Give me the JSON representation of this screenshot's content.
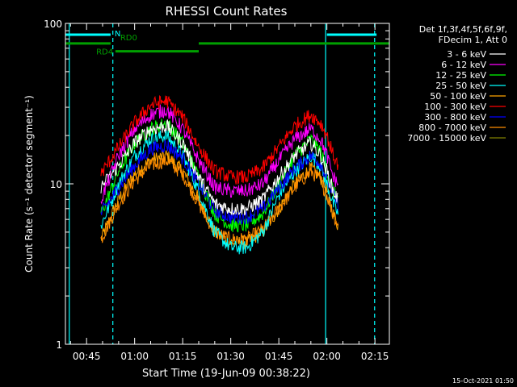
{
  "chart_data": {
    "type": "line",
    "title": "RHESSI Count Rates",
    "xlabel": "Start Time (19-Jun-09 00:38:22)",
    "ylabel": "Count Rate (s⁻¹ detector segment⁻¹)",
    "yscale": "log",
    "ylim": [
      1,
      100
    ],
    "xlim_minutes": [
      38.4,
      139.5
    ],
    "x_ticks": [
      {
        "label": "00:45",
        "minute": 45
      },
      {
        "label": "01:00",
        "minute": 60
      },
      {
        "label": "01:15",
        "minute": 75
      },
      {
        "label": "01:30",
        "minute": 90
      },
      {
        "label": "01:45",
        "minute": 105
      },
      {
        "label": "02:00",
        "minute": 120
      },
      {
        "label": "02:15",
        "minute": 135
      }
    ],
    "y_ticks": [
      {
        "label": "1",
        "value": 1
      },
      {
        "label": "10",
        "value": 10
      },
      {
        "label": "100",
        "value": 100
      }
    ],
    "legend_header": [
      "Det 1f,3f,4f,5f,6f,9f,",
      "FDecim 1, Att 0"
    ],
    "legend_position": "right, outside plot",
    "series": [
      {
        "name": "3 - 6 keV",
        "color": "#ffffff",
        "x": [
          49.5,
          55,
          60,
          65,
          70,
          75,
          80,
          85,
          90,
          95,
          100,
          105,
          110,
          115,
          118,
          120,
          122,
          123.5
        ],
        "y": [
          9.5,
          13,
          18,
          22,
          23,
          18,
          11,
          7.5,
          7,
          7,
          8,
          11,
          15,
          18,
          15,
          12,
          9,
          8
        ]
      },
      {
        "name": "6 - 12 keV",
        "color": "#ff00ff",
        "x": [
          49.5,
          55,
          60,
          65,
          70,
          75,
          80,
          85,
          90,
          95,
          100,
          105,
          110,
          115,
          118,
          120,
          122,
          123.5
        ],
        "y": [
          8,
          15,
          22,
          27,
          29,
          22,
          14,
          9.5,
          9,
          9,
          10,
          14,
          19,
          22,
          19,
          15,
          11,
          10
        ]
      },
      {
        "name": "12 - 25 keV",
        "color": "#00ff00",
        "x": [
          49.5,
          55,
          60,
          65,
          70,
          75,
          80,
          85,
          90,
          95,
          100,
          105,
          110,
          115,
          118,
          120,
          122,
          123.5
        ],
        "y": [
          6.5,
          12,
          18,
          22,
          24,
          18,
          11,
          6.5,
          5.5,
          5.5,
          6.5,
          10,
          15,
          19,
          16,
          12,
          9,
          8
        ]
      },
      {
        "name": "25 - 50 keV",
        "color": "#00ffff",
        "x": [
          49.5,
          55,
          60,
          65,
          70,
          75,
          80,
          85,
          90,
          95,
          100,
          105,
          110,
          115,
          118,
          120,
          122,
          123.5
        ],
        "y": [
          5.5,
          10,
          15,
          19,
          20,
          15,
          9,
          5,
          4,
          4,
          5,
          8.5,
          12,
          15,
          13,
          10,
          7.5,
          6.5
        ]
      },
      {
        "name": "50 - 100 keV",
        "color": "#ffa500",
        "x": [
          49.5,
          55,
          60,
          65,
          70,
          75,
          80,
          85,
          90,
          95,
          100,
          105,
          110,
          115,
          118,
          120,
          122,
          123.5
        ],
        "y": [
          4.5,
          8,
          11.5,
          14,
          15,
          12,
          8,
          5,
          4.3,
          4.3,
          5,
          7,
          10,
          12.5,
          11,
          9,
          6.5,
          5.5
        ]
      },
      {
        "name": "100 - 300 keV",
        "color": "#ff0000",
        "x": [
          49.5,
          55,
          60,
          65,
          70,
          75,
          80,
          85,
          90,
          95,
          100,
          105,
          110,
          115,
          118,
          120,
          122,
          123.5
        ],
        "y": [
          11.5,
          17,
          24,
          31,
          33,
          26,
          17,
          12,
          11,
          11,
          12.5,
          17,
          23,
          27,
          24,
          20,
          15,
          13
        ]
      },
      {
        "name": "300 - 800 keV",
        "color": "#0000ff",
        "x": [
          49.5,
          55,
          60,
          65,
          70,
          75,
          80,
          85,
          90,
          95,
          100,
          105,
          110,
          115,
          118,
          120,
          122,
          123.5
        ],
        "y": [
          6.5,
          9.5,
          13,
          16.5,
          17.5,
          14.5,
          10,
          6.8,
          6.2,
          6.2,
          7,
          9.5,
          12.5,
          15,
          13.5,
          11,
          8.5,
          7.5
        ]
      },
      {
        "name": "800 - 7000 keV",
        "color": "#ff8c00",
        "x": [
          49.5,
          55,
          60,
          65,
          70,
          75,
          80,
          85,
          90,
          95,
          100,
          105,
          110,
          115,
          118,
          120,
          122,
          123.5
        ],
        "y": [
          4.5,
          7.5,
          10.5,
          13,
          14,
          11.5,
          7.5,
          5,
          4.5,
          4.5,
          5.2,
          7,
          9.5,
          12,
          10.5,
          8.5,
          6.5,
          5.5
        ]
      },
      {
        "name": "7000 - 15000 keV",
        "color": "#808000",
        "x": [],
        "y": []
      }
    ],
    "annotations": {
      "attenuator_bars": [
        {
          "label": "N",
          "color": "#00ffff",
          "x_start": 38.4,
          "x_end": 52.5,
          "y": 85
        },
        {
          "label": "",
          "color": "#00ffff",
          "x_start": 120,
          "x_end": 135.5,
          "y": 85
        }
      ],
      "rate_decimation_bars": [
        {
          "label": "RD0",
          "color": "#00a000",
          "x_start": 38.4,
          "x_end": 139.5,
          "y": 75,
          "gap": [
            52.5,
            80
          ]
        },
        {
          "label": "RD4",
          "color": "#00a000",
          "x_start": 54,
          "x_end": 80,
          "y": 67
        }
      ],
      "vertical_lines": [
        {
          "minute": 39.6,
          "style": "solid",
          "color": "#00ffff"
        },
        {
          "minute": 53.2,
          "style": "dashed",
          "color": "#00ffff"
        },
        {
          "minute": 119.6,
          "style": "solid",
          "color": "#00ffff"
        },
        {
          "minute": 134.9,
          "style": "dashed",
          "color": "#00ffff"
        }
      ]
    }
  },
  "footer": {
    "timestamp": "15-Oct-2021 01:50"
  }
}
